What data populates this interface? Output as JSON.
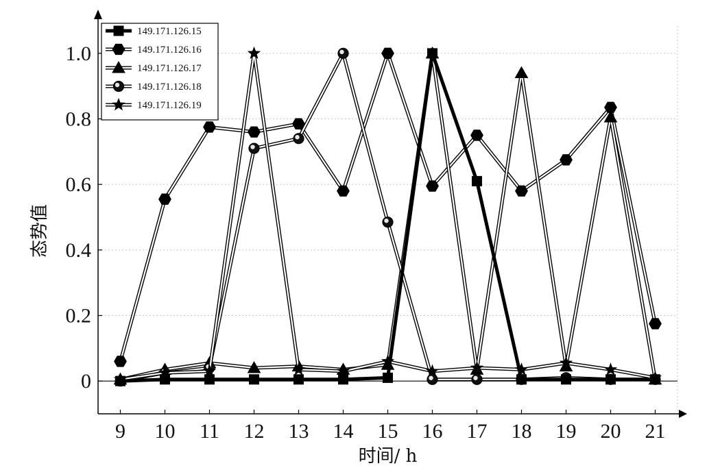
{
  "chart_data": {
    "type": "line",
    "title": "",
    "xlabel": "时间/ h",
    "ylabel": "态势值",
    "x": [
      9,
      10,
      11,
      12,
      13,
      14,
      15,
      16,
      17,
      18,
      19,
      20,
      21
    ],
    "xlim": [
      8.5,
      21.5
    ],
    "ylim": [
      -0.1,
      1.1
    ],
    "yticks": [
      0,
      0.2,
      0.4,
      0.6,
      0.8,
      1.0
    ],
    "ytick_labels": [
      "0",
      "0.2",
      "0.4",
      "0.6",
      "0.8",
      "1.0"
    ],
    "xtick_labels": [
      "9",
      "10",
      "11",
      "12",
      "13",
      "14",
      "15",
      "16",
      "17",
      "18",
      "19",
      "20",
      "21"
    ],
    "grid": true,
    "legend_position": "top-left",
    "series": [
      {
        "name": "149.171.126.15",
        "marker": "square",
        "style": "solid-thick",
        "values": [
          0.0,
          0.005,
          0.005,
          0.005,
          0.005,
          0.005,
          0.01,
          1.0,
          0.61,
          0.005,
          0.005,
          0.005,
          0.005
        ]
      },
      {
        "name": "149.171.126.16",
        "marker": "hexagon",
        "style": "double",
        "values": [
          0.06,
          0.555,
          0.775,
          0.76,
          0.785,
          0.58,
          1.0,
          0.595,
          0.75,
          0.58,
          0.675,
          0.835,
          0.175
        ]
      },
      {
        "name": "149.171.126.17",
        "marker": "triangle",
        "style": "double",
        "values": [
          0.005,
          0.035,
          0.055,
          0.04,
          0.045,
          0.035,
          0.05,
          1.0,
          0.035,
          0.94,
          0.045,
          0.805,
          0.005
        ]
      },
      {
        "name": "149.171.126.18",
        "marker": "circle",
        "style": "double",
        "values": [
          0.0,
          0.025,
          0.04,
          0.71,
          0.74,
          1.0,
          0.485,
          0.005,
          0.005,
          0.005,
          0.01,
          0.005,
          0.005
        ]
      },
      {
        "name": "149.171.126.19",
        "marker": "star",
        "style": "double",
        "values": [
          0.005,
          0.025,
          0.03,
          1.0,
          0.035,
          0.03,
          0.06,
          0.03,
          0.04,
          0.035,
          0.055,
          0.035,
          0.01
        ]
      }
    ]
  }
}
